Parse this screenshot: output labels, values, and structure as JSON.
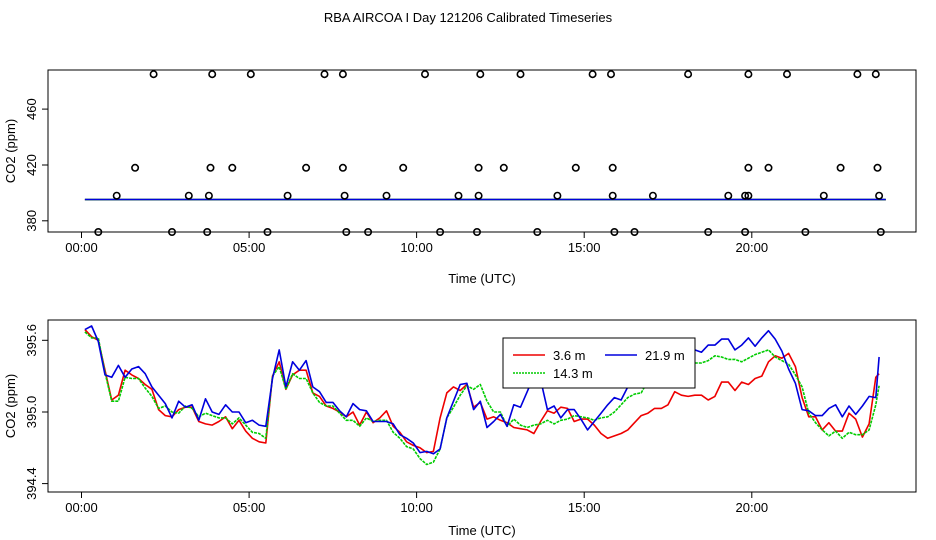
{
  "figure": {
    "title": "RBA AIRCOA I  Day 121206  Calibrated Timeseries"
  },
  "chart_data": [
    {
      "type": "scatter",
      "xlabel": "Time (UTC)",
      "ylabel": "CO2 (ppm)",
      "xlim": [
        -1.0,
        24.9
      ],
      "ylim": [
        372.0,
        488.0
      ],
      "xticks": [
        0,
        5,
        10,
        15,
        20
      ],
      "xtick_labels": [
        "00:00",
        "05:00",
        "10:00",
        "15:00",
        "20:00"
      ],
      "yticks": [
        380,
        420,
        460
      ],
      "ytick_labels": [
        "380",
        "420",
        "460"
      ],
      "points_x": [
        2.15,
        3.9,
        5.05,
        7.25,
        7.8,
        10.25,
        11.9,
        13.1,
        15.25,
        15.8,
        18.1,
        19.9,
        21.05,
        23.15,
        23.7,
        1.6,
        3.85,
        4.5,
        6.7,
        7.8,
        9.6,
        11.85,
        12.6,
        14.75,
        15.85,
        19.9,
        20.5,
        22.65,
        23.75,
        1.05,
        3.2,
        3.8,
        6.15,
        7.85,
        9.1,
        11.25,
        11.85,
        14.2,
        15.85,
        17.05,
        19.3,
        19.8,
        19.9,
        22.15,
        23.8,
        0.5,
        2.7,
        3.75,
        5.55,
        7.9,
        8.55,
        10.7,
        11.8,
        13.6,
        15.9,
        16.5,
        18.7,
        19.8,
        21.6,
        23.85
      ],
      "points_y": [
        485,
        485,
        485,
        485,
        485,
        485,
        485,
        485,
        485,
        485,
        485,
        485,
        485,
        485,
        485,
        418,
        418,
        418,
        418,
        418,
        418,
        418,
        418,
        418,
        418,
        418,
        418,
        418,
        418,
        398,
        398,
        398,
        398,
        398,
        398,
        398,
        398,
        398,
        398,
        398,
        398,
        398,
        398,
        398,
        398,
        372,
        372,
        372,
        372,
        372,
        372,
        372,
        372,
        372,
        372,
        372,
        372,
        372,
        372,
        372
      ],
      "series": [
        {
          "name": "3.6 m",
          "color": "#ee0000",
          "x": [
            0.1,
            24
          ],
          "values": [
            395.1,
            395.1
          ]
        },
        {
          "name": "14.3 m",
          "color": "#00cc00",
          "x": [
            0.1,
            24
          ],
          "values": [
            395.2,
            395.2
          ]
        },
        {
          "name": "21.9 m",
          "color": "#0000dd",
          "x": [
            0.1,
            24
          ],
          "values": [
            395.3,
            395.3
          ]
        }
      ]
    },
    {
      "type": "line",
      "xlabel": "Time (UTC)",
      "ylabel": "CO2 (ppm)",
      "xlim": [
        -1.0,
        24.9
      ],
      "ylim": [
        394.33,
        395.77
      ],
      "xticks": [
        0,
        5,
        10,
        15,
        20
      ],
      "xtick_labels": [
        "00:00",
        "05:00",
        "10:00",
        "15:00",
        "20:00"
      ],
      "yticks": [
        394.4,
        395.0,
        395.6
      ],
      "ytick_labels": [
        "394.4",
        "395.0",
        "395.6"
      ],
      "legend_position": "top-center",
      "x": [
        0.1,
        0.3,
        0.5,
        0.7,
        0.9,
        1.1,
        1.3,
        1.5,
        1.7,
        1.9,
        2.1,
        2.3,
        2.5,
        2.7,
        2.9,
        3.1,
        3.3,
        3.5,
        3.7,
        3.9,
        4.1,
        4.3,
        4.5,
        4.7,
        4.9,
        5.1,
        5.3,
        5.5,
        5.7,
        5.9,
        6.1,
        6.3,
        6.5,
        6.7,
        6.9,
        7.1,
        7.3,
        7.5,
        7.7,
        7.9,
        8.1,
        8.3,
        8.5,
        8.7,
        8.9,
        9.1,
        9.3,
        9.5,
        9.7,
        9.9,
        10.1,
        10.3,
        10.5,
        10.7,
        10.9,
        11.1,
        11.3,
        11.5,
        11.7,
        11.9,
        12.1,
        12.3,
        12.5,
        12.7,
        12.9,
        13.1,
        13.3,
        13.5,
        13.7,
        13.9,
        14.1,
        14.3,
        14.5,
        14.7,
        14.9,
        15.1,
        15.3,
        15.5,
        15.7,
        15.9,
        16.1,
        16.3,
        16.5,
        16.7,
        16.9,
        17.1,
        17.3,
        17.5,
        17.7,
        17.9,
        18.1,
        18.3,
        18.5,
        18.7,
        18.9,
        19.1,
        19.3,
        19.5,
        19.7,
        19.9,
        20.1,
        20.3,
        20.5,
        20.7,
        20.9,
        21.1,
        21.3,
        21.5,
        21.7,
        21.9,
        22.1,
        22.3,
        22.5,
        22.7,
        22.9,
        23.1,
        23.3,
        23.5,
        23.7,
        23.8
      ],
      "series": [
        {
          "name": "3.6 m",
          "color": "#ee0000",
          "values": [
            395.69,
            395.63,
            395.6,
            395.35,
            395.1,
            395.14,
            395.35,
            395.31,
            395.28,
            395.23,
            395.19,
            395.02,
            394.97,
            394.96,
            395.02,
            395.04,
            395.04,
            394.92,
            394.9,
            394.89,
            394.92,
            394.96,
            394.86,
            394.93,
            394.84,
            394.78,
            394.75,
            394.74,
            395.3,
            395.42,
            395.19,
            395.31,
            395.35,
            395.35,
            395.16,
            395.13,
            395.05,
            395.03,
            395.0,
            394.96,
            395.0,
            394.89,
            395.0,
            394.91,
            394.95,
            395.01,
            394.88,
            394.83,
            394.75,
            394.72,
            394.7,
            394.66,
            394.67,
            394.95,
            395.16,
            395.21,
            395.18,
            395.23,
            395.04,
            395.08,
            394.94,
            394.96,
            394.93,
            394.91,
            394.87,
            394.86,
            394.85,
            394.82,
            394.92,
            395.01,
            394.99,
            395.04,
            395.03,
            394.92,
            394.94,
            394.94,
            394.89,
            394.82,
            394.78,
            394.8,
            394.82,
            394.85,
            394.91,
            394.97,
            394.99,
            395.03,
            395.03,
            395.06,
            395.17,
            395.14,
            395.13,
            395.14,
            395.14,
            395.1,
            395.13,
            395.25,
            395.25,
            395.18,
            395.25,
            395.23,
            395.28,
            395.3,
            395.42,
            395.47,
            395.45,
            395.49,
            395.38,
            395.12,
            394.96,
            394.96,
            394.85,
            394.91,
            394.84,
            394.84,
            394.99,
            394.94,
            394.79,
            394.9,
            395.29,
            395.32
          ]
        },
        {
          "name": "14.3 m",
          "color": "#00cc00",
          "values": [
            395.67,
            395.62,
            395.62,
            395.33,
            395.09,
            395.09,
            395.29,
            395.28,
            395.28,
            395.2,
            395.13,
            395.03,
            395.05,
            395.0,
            394.99,
            395.05,
            395.03,
            394.96,
            394.99,
            394.97,
            394.95,
            394.95,
            394.9,
            394.95,
            394.89,
            394.83,
            394.82,
            394.78,
            395.3,
            395.38,
            395.19,
            395.32,
            395.28,
            395.28,
            395.16,
            395.08,
            395.05,
            395.05,
            394.99,
            394.93,
            394.93,
            394.88,
            394.95,
            394.92,
            394.93,
            394.93,
            394.83,
            394.78,
            394.71,
            394.69,
            394.61,
            394.56,
            394.58,
            394.69,
            394.95,
            395.04,
            395.14,
            395.22,
            395.19,
            395.23,
            395.09,
            395.0,
            395.0,
            394.88,
            394.94,
            394.89,
            394.87,
            394.89,
            394.9,
            394.93,
            394.9,
            394.93,
            394.94,
            394.97,
            394.96,
            394.95,
            394.93,
            394.95,
            394.96,
            395.0,
            395.06,
            395.12,
            395.15,
            395.16,
            395.26,
            395.3,
            395.28,
            395.32,
            395.37,
            395.37,
            395.41,
            395.41,
            395.41,
            395.43,
            395.47,
            395.46,
            395.44,
            395.44,
            395.42,
            395.45,
            395.48,
            395.5,
            395.52,
            395.46,
            395.43,
            395.4,
            395.31,
            395.21,
            394.99,
            394.91,
            394.85,
            394.8,
            394.84,
            394.78,
            394.83,
            394.81,
            394.81,
            394.85,
            395.06,
            395.22
          ]
        },
        {
          "name": "21.9 m",
          "color": "#0000dd",
          "values": [
            395.69,
            395.72,
            395.59,
            395.31,
            395.29,
            395.39,
            395.29,
            395.36,
            395.38,
            395.32,
            395.21,
            395.14,
            395.07,
            394.95,
            395.09,
            395.04,
            395.06,
            394.93,
            395.11,
            395.0,
            394.98,
            395.06,
            395.0,
            395.0,
            394.91,
            394.93,
            394.89,
            394.88,
            395.28,
            395.52,
            395.21,
            395.42,
            395.35,
            395.43,
            395.21,
            395.17,
            395.08,
            395.08,
            395.01,
            394.96,
            395.07,
            395.02,
            395.01,
            394.92,
            394.92,
            394.92,
            394.9,
            394.81,
            394.78,
            394.74,
            394.66,
            394.67,
            394.65,
            394.69,
            394.95,
            395.09,
            395.23,
            395.24,
            395.02,
            395.09,
            394.87,
            394.92,
            394.98,
            394.88,
            395.06,
            395.04,
            395.17,
            395.3,
            395.27,
            395.02,
            395.05,
            394.95,
            395.02,
            395.02,
            394.94,
            394.85,
            394.92,
            394.99,
            395.06,
            395.12,
            395.1,
            395.21,
            395.27,
            395.29,
            395.34,
            395.38,
            395.42,
            395.37,
            395.44,
            395.43,
            395.48,
            395.52,
            395.5,
            395.56,
            395.56,
            395.61,
            395.61,
            395.52,
            395.56,
            395.62,
            395.55,
            395.62,
            395.68,
            395.61,
            395.51,
            395.36,
            395.24,
            395.02,
            395.01,
            394.97,
            394.97,
            395.03,
            395.06,
            394.96,
            395.05,
            394.98,
            395.05,
            395.13,
            395.12,
            395.46
          ]
        }
      ]
    }
  ]
}
